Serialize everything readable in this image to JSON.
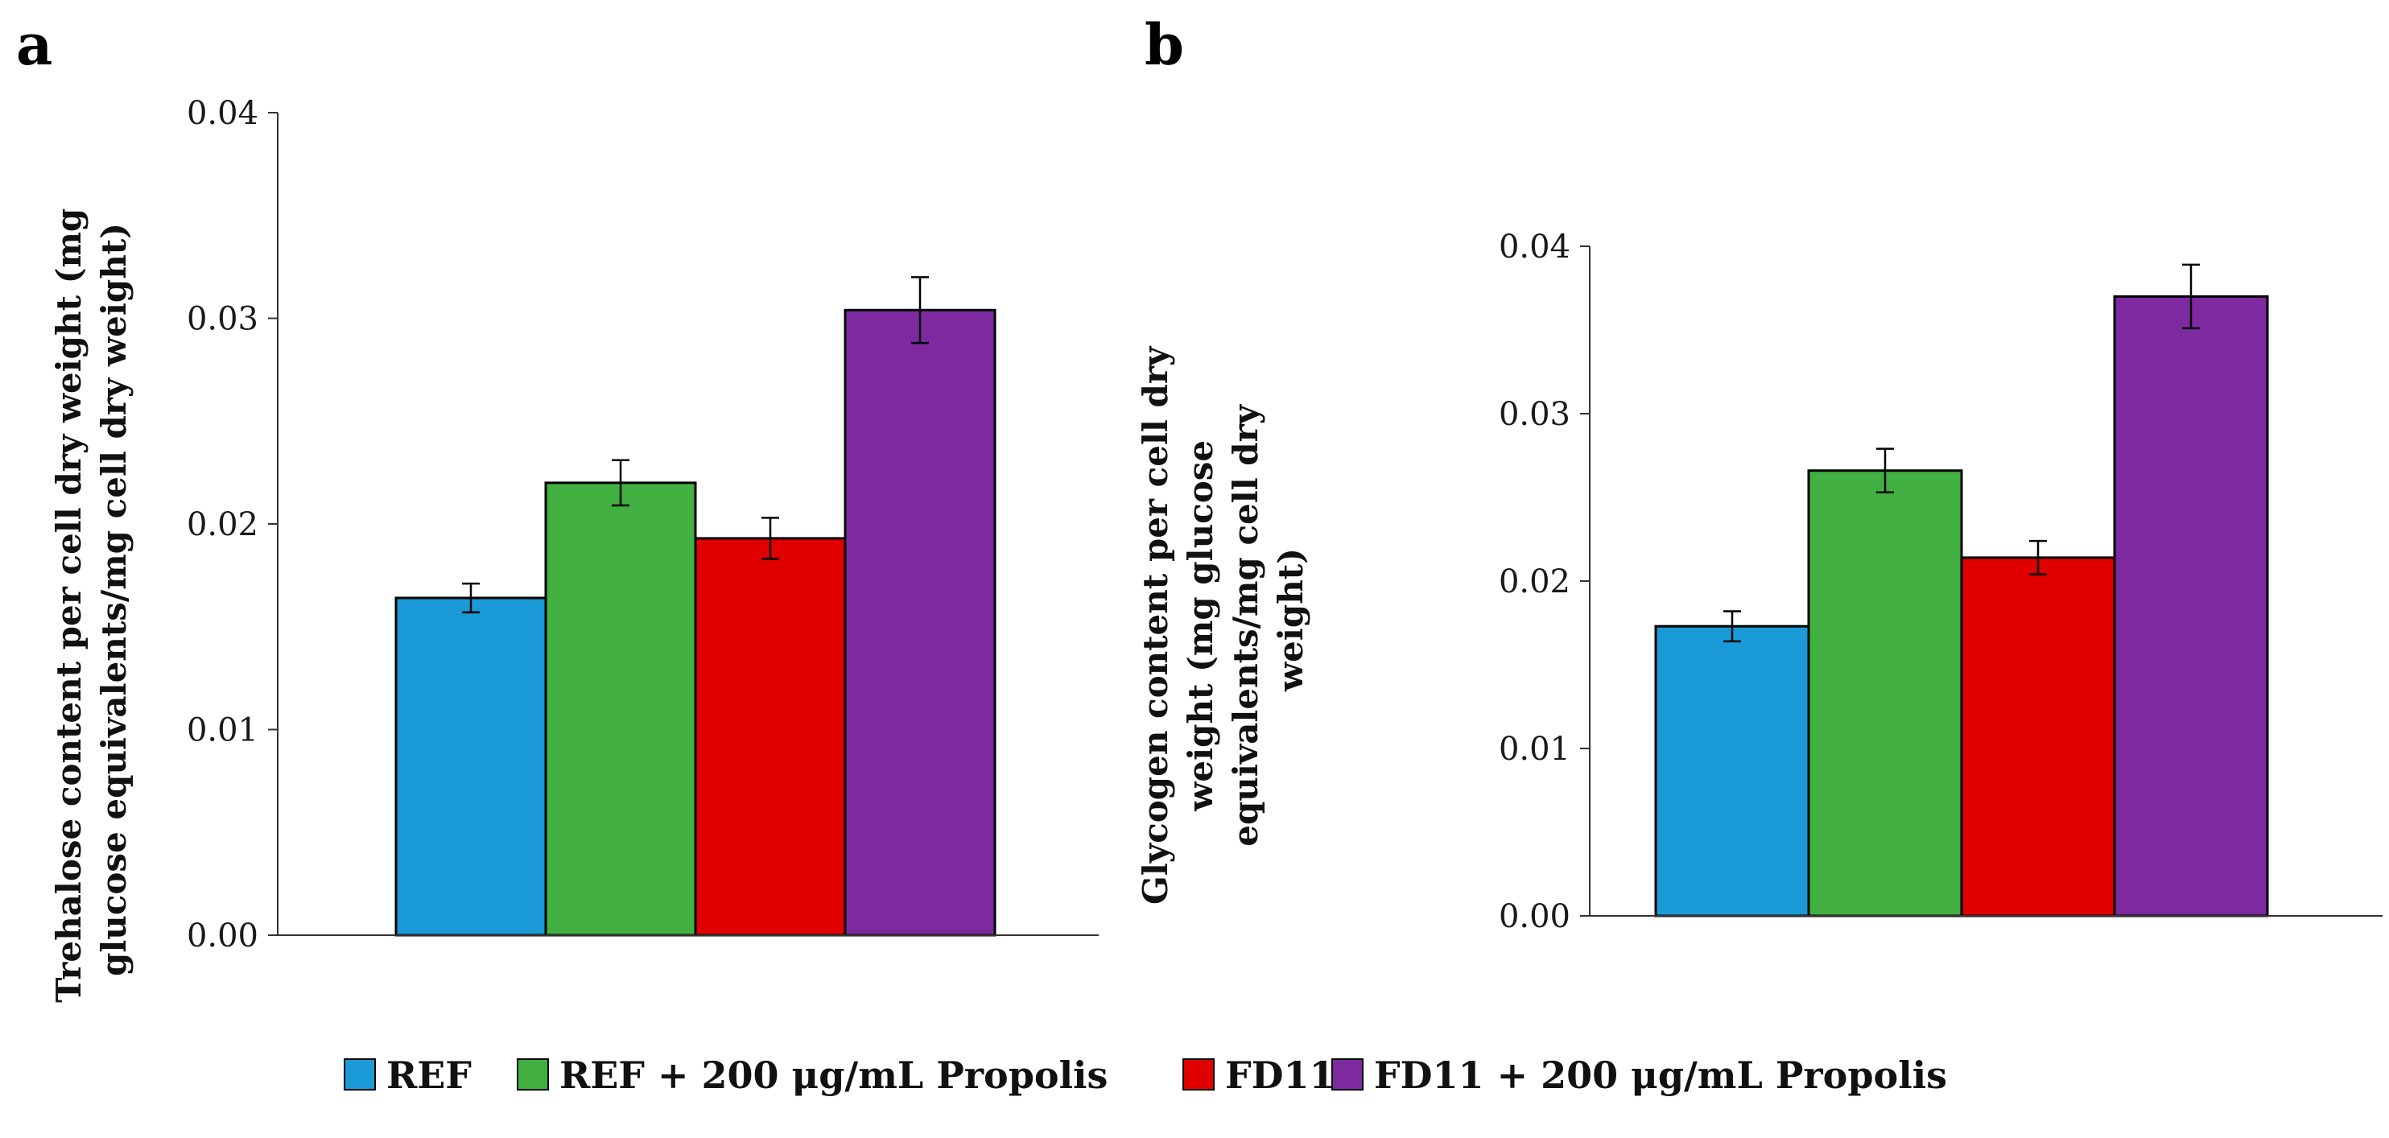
{
  "legend": [
    {
      "label": "REF",
      "color": "#1a9ad6"
    },
    {
      "label": "REF + 200 μg/mL Propolis",
      "color": "#41b041"
    },
    {
      "label": "FD11",
      "color": "#e00000"
    },
    {
      "label": "FD11 + 200 μg/mL Propolis",
      "color": "#7d2aa0"
    }
  ],
  "chart_data": [
    {
      "panel": "a",
      "type": "bar",
      "ylabel_lines": [
        "Trehalose content per cell dry weight (mg",
        "glucose equivalents/mg cell dry weight)"
      ],
      "ylim": [
        0,
        0.04
      ],
      "yticks": [
        "0.00",
        "0.01",
        "0.02",
        "0.03",
        "0.04"
      ],
      "series": [
        {
          "name": "REF",
          "value": 0.0164,
          "error": 0.0007
        },
        {
          "name": "REF + 200 μg/mL Propolis",
          "value": 0.022,
          "error": 0.0011
        },
        {
          "name": "FD11",
          "value": 0.0193,
          "error": 0.001
        },
        {
          "name": "FD11 + 200 μg/mL Propolis",
          "value": 0.0304,
          "error": 0.0016
        }
      ]
    },
    {
      "panel": "b",
      "type": "bar",
      "ylabel_lines": [
        "Glycogen content per cell dry",
        "weight (mg glucose",
        "equivalents/mg cell dry",
        "weight)"
      ],
      "ylim": [
        0,
        0.04
      ],
      "yticks": [
        "0.00",
        "0.01",
        "0.02",
        "0.03",
        "0.04"
      ],
      "series": [
        {
          "name": "REF",
          "value": 0.0173,
          "error": 0.0009
        },
        {
          "name": "REF + 200 μg/mL Propolis",
          "value": 0.0266,
          "error": 0.0013
        },
        {
          "name": "FD11",
          "value": 0.0214,
          "error": 0.001
        },
        {
          "name": "FD11 + 200 μg/mL Propolis",
          "value": 0.037,
          "error": 0.0019
        }
      ]
    }
  ]
}
